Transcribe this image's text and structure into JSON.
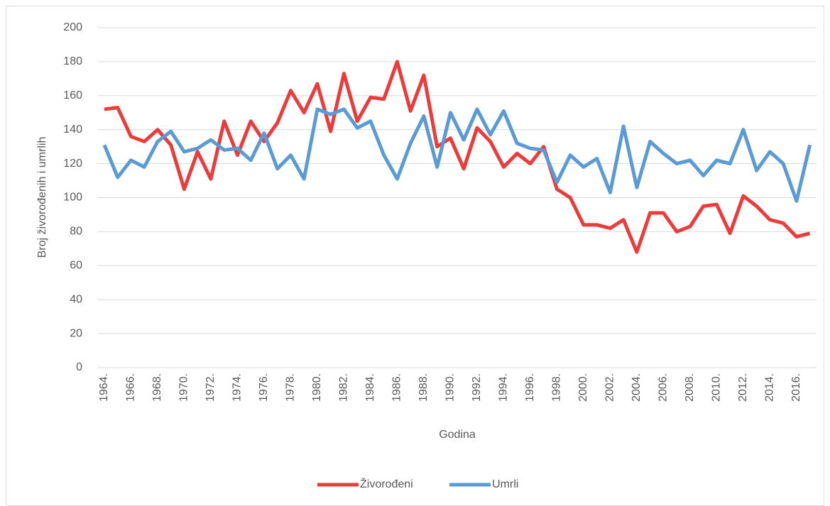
{
  "chart_data": {
    "type": "line",
    "x_label": "Godina",
    "y_label": "Broj živorođenih i umrlih",
    "categories": [
      "1964.",
      null,
      "1966.",
      null,
      "1968.",
      null,
      "1970.",
      null,
      "1972.",
      null,
      "1974.",
      null,
      "1976.",
      null,
      "1978.",
      null,
      "1980.",
      null,
      "1982.",
      null,
      "1984.",
      null,
      "1986.",
      null,
      "1988.",
      null,
      "1990.",
      null,
      "1992.",
      null,
      "1994.",
      null,
      "1996.",
      null,
      "1998.",
      null,
      "2000.",
      null,
      "2002.",
      null,
      "2004.",
      null,
      "2006.",
      null,
      "2008.",
      null,
      "2010.",
      null,
      "2012.",
      null,
      "2014.",
      null,
      "2016.",
      null
    ],
    "series": [
      {
        "name": "Živorođeni",
        "color": "#ec3b3b",
        "values": [
          152,
          153,
          136,
          133,
          140,
          131,
          105,
          127,
          111,
          145,
          125,
          145,
          133,
          144,
          163,
          150,
          167,
          139,
          173,
          145,
          159,
          158,
          180,
          151,
          172,
          130,
          135,
          117,
          141,
          133,
          118,
          126,
          120,
          130,
          105,
          100,
          84,
          84,
          82,
          87,
          68,
          91,
          91,
          80,
          83,
          95,
          96,
          79,
          101,
          95,
          87,
          85,
          77,
          79
        ]
      },
      {
        "name": "Umrli",
        "color": "#5b9bd5",
        "values": [
          131,
          112,
          122,
          118,
          133,
          139,
          127,
          129,
          134,
          128,
          129,
          122,
          138,
          117,
          125,
          111,
          152,
          149,
          152,
          141,
          145,
          125,
          111,
          132,
          148,
          118,
          150,
          134,
          152,
          137,
          151,
          132,
          129,
          128,
          109,
          125,
          118,
          123,
          103,
          142,
          106,
          133,
          126,
          120,
          122,
          113,
          122,
          120,
          140,
          116,
          127,
          120,
          98,
          131
        ]
      }
    ],
    "ylim": [
      0,
      200
    ],
    "yticks": [
      0,
      20,
      40,
      60,
      80,
      100,
      120,
      140,
      160,
      180,
      200
    ],
    "grid": true,
    "legend": "bottom"
  }
}
